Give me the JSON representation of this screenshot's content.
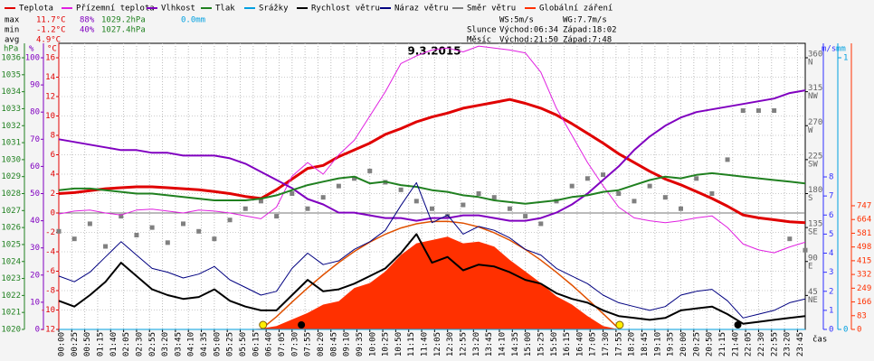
{
  "chart_data": {
    "type": "line",
    "title": "9.3.2015",
    "x_label": "čas",
    "x": [
      0,
      30,
      60,
      90,
      120,
      150,
      180,
      210,
      240,
      270,
      300,
      330,
      360,
      390,
      420,
      450,
      480,
      510,
      540,
      570,
      600,
      630,
      660,
      690,
      720,
      750,
      780,
      810,
      840,
      870,
      900,
      930,
      960,
      990,
      1020,
      1050,
      1080,
      1110,
      1140,
      1170,
      1200,
      1230,
      1260,
      1290,
      1320,
      1350,
      1380,
      1410,
      1440
    ],
    "xlim": [
      0,
      1440
    ],
    "xticks": [
      {
        "value": 0,
        "label": "00:00"
      },
      {
        "value": 25,
        "label": "00:25"
      },
      {
        "value": 50,
        "label": "00:50"
      },
      {
        "value": 75,
        "label": "01:15"
      },
      {
        "value": 100,
        "label": "01:40"
      },
      {
        "value": 125,
        "label": "02:05"
      },
      {
        "value": 150,
        "label": "02:30"
      },
      {
        "value": 175,
        "label": "02:55"
      },
      {
        "value": 200,
        "label": "03:20"
      },
      {
        "value": 225,
        "label": "03:45"
      },
      {
        "value": 250,
        "label": "04:10"
      },
      {
        "value": 275,
        "label": "04:35"
      },
      {
        "value": 300,
        "label": "05:00"
      },
      {
        "value": 325,
        "label": "05:25"
      },
      {
        "value": 350,
        "label": "05:50"
      },
      {
        "value": 375,
        "label": "06:15"
      },
      {
        "value": 400,
        "label": "06:40"
      },
      {
        "value": 425,
        "label": "07:05"
      },
      {
        "value": 450,
        "label": "07:30"
      },
      {
        "value": 475,
        "label": "07:55"
      },
      {
        "value": 500,
        "label": "08:20"
      },
      {
        "value": 525,
        "label": "08:45"
      },
      {
        "value": 550,
        "label": "09:10"
      },
      {
        "value": 575,
        "label": "09:35"
      },
      {
        "value": 600,
        "label": "10:00"
      },
      {
        "value": 625,
        "label": "10:25"
      },
      {
        "value": 650,
        "label": "10:50"
      },
      {
        "value": 675,
        "label": "11:15"
      },
      {
        "value": 700,
        "label": "11:40"
      },
      {
        "value": 725,
        "label": "12:05"
      },
      {
        "value": 750,
        "label": "12:30"
      },
      {
        "value": 775,
        "label": "12:55"
      },
      {
        "value": 800,
        "label": "13:20"
      },
      {
        "value": 825,
        "label": "13:45"
      },
      {
        "value": 850,
        "label": "14:10"
      },
      {
        "value": 875,
        "label": "14:35"
      },
      {
        "value": 900,
        "label": "15:00"
      },
      {
        "value": 925,
        "label": "15:25"
      },
      {
        "value": 950,
        "label": "15:50"
      },
      {
        "value": 975,
        "label": "16:15"
      },
      {
        "value": 1000,
        "label": "16:40"
      },
      {
        "value": 1025,
        "label": "17:05"
      },
      {
        "value": 1050,
        "label": "17:30"
      },
      {
        "value": 1075,
        "label": "17:55"
      },
      {
        "value": 1100,
        "label": "18:20"
      },
      {
        "value": 1125,
        "label": "18:45"
      },
      {
        "value": 1150,
        "label": "19:10"
      },
      {
        "value": 1175,
        "label": "19:35"
      },
      {
        "value": 1200,
        "label": "20:00"
      },
      {
        "value": 1225,
        "label": "20:25"
      },
      {
        "value": 1250,
        "label": "20:50"
      },
      {
        "value": 1275,
        "label": "21:15"
      },
      {
        "value": 1300,
        "label": "21:40"
      },
      {
        "value": 1325,
        "label": "22:05"
      },
      {
        "value": 1350,
        "label": "22:30"
      },
      {
        "value": 1375,
        "label": "22:55"
      },
      {
        "value": 1400,
        "label": "23:20"
      },
      {
        "value": 1425,
        "label": "23:45"
      }
    ],
    "grid": true,
    "axes": {
      "pressure": {
        "label": "hPa",
        "color": "#208020",
        "lim": [
          1020,
          1036
        ],
        "ticks": [
          1020,
          1021,
          1022,
          1023,
          1024,
          1025,
          1026,
          1027,
          1028,
          1029,
          1030,
          1031,
          1032,
          1033,
          1034,
          1035,
          1036
        ]
      },
      "humidity": {
        "label": "%",
        "color": "#8000c0",
        "lim": [
          0,
          100
        ],
        "ticks": [
          0,
          10,
          20,
          30,
          40,
          50,
          60,
          70,
          80,
          90,
          100
        ]
      },
      "temperature": {
        "label": "°C",
        "color": "#e00000",
        "lim": [
          -12,
          16
        ],
        "ticks": [
          -12,
          -10,
          -8,
          -6,
          -4,
          -2,
          0,
          2,
          4,
          6,
          8,
          10,
          12,
          14,
          16
        ]
      },
      "direction": {
        "color": "#606060",
        "lim": [
          0,
          360
        ],
        "ticks": [
          45,
          90,
          135,
          180,
          225,
          270,
          315,
          360
        ],
        "names": [
          "NE",
          "E",
          "SE",
          "S",
          "SW",
          "W",
          "NW",
          "N"
        ]
      },
      "wind": {
        "label": "m/s",
        "color": "#3030ff",
        "lim": [
          0,
          14.25
        ],
        "ticks": [
          0,
          1,
          2,
          3,
          4,
          5,
          6,
          7,
          8
        ]
      },
      "rain": {
        "label": "mm",
        "color": "#00a0e0",
        "lim": [
          0,
          1
        ],
        "ticks": [
          0,
          1
        ]
      },
      "radiation": {
        "color": "#ff3000",
        "lim": [
          0,
          1641
        ],
        "ticks": [
          0,
          83,
          166,
          249,
          332,
          415,
          498,
          581,
          664,
          747
        ]
      }
    },
    "series": [
      {
        "name": "Teplota",
        "color": "#e00000",
        "axis": "temperature",
        "kind": "line",
        "width": 3,
        "values": [
          2.0,
          2.1,
          2.3,
          2.5,
          2.6,
          2.7,
          2.7,
          2.6,
          2.5,
          2.4,
          2.2,
          2.0,
          1.7,
          1.5,
          2.4,
          3.5,
          4.6,
          4.9,
          5.8,
          6.5,
          7.2,
          8.1,
          8.7,
          9.4,
          9.9,
          10.3,
          10.8,
          11.1,
          11.4,
          11.7,
          11.3,
          10.8,
          10.1,
          9.2,
          8.2,
          7.2,
          6.1,
          5.2,
          4.3,
          3.5,
          2.9,
          2.2,
          1.5,
          0.7,
          -0.2,
          -0.5,
          -0.7,
          -0.9,
          -1.0
        ]
      },
      {
        "name": "Přízemní teplota",
        "color": "#e020e0",
        "axis": "temperature",
        "kind": "line",
        "width": 1,
        "values": [
          -0.1,
          0.2,
          0.3,
          0.0,
          -0.2,
          0.3,
          0.4,
          0.2,
          0.0,
          0.3,
          0.2,
          0.0,
          -0.3,
          -0.6,
          0.6,
          3.8,
          5.2,
          4.0,
          6.0,
          7.5,
          10.0,
          12.5,
          15.4,
          16.2,
          16.8,
          17.0,
          16.6,
          17.2,
          17.0,
          16.8,
          16.5,
          14.5,
          10.8,
          8.0,
          5.2,
          2.8,
          0.6,
          -0.5,
          -0.8,
          -1.0,
          -0.8,
          -0.5,
          -0.3,
          -1.5,
          -3.2,
          -3.8,
          -4.1,
          -3.5,
          -3.0
        ]
      },
      {
        "name": "Vlhkost",
        "color": "#8000c0",
        "axis": "humidity",
        "kind": "line",
        "width": 2,
        "values": [
          70,
          69,
          68,
          67,
          66,
          66,
          65,
          65,
          64,
          64,
          64,
          63,
          61,
          58,
          55,
          52,
          48,
          46,
          43,
          43,
          42,
          41,
          41,
          40,
          41,
          41,
          42,
          42,
          41,
          40,
          40,
          41,
          43,
          46,
          50,
          55,
          60,
          66,
          71,
          75,
          78,
          80,
          81,
          82,
          83,
          84,
          85,
          87,
          88
        ]
      },
      {
        "name": "Tlak",
        "color": "#208020",
        "axis": "pressure",
        "kind": "line",
        "width": 2,
        "values": [
          1028.2,
          1028.3,
          1028.3,
          1028.2,
          1028.1,
          1028.0,
          1028.0,
          1027.9,
          1027.8,
          1027.7,
          1027.6,
          1027.6,
          1027.6,
          1027.7,
          1027.9,
          1028.2,
          1028.5,
          1028.7,
          1028.9,
          1029.0,
          1028.6,
          1028.7,
          1028.5,
          1028.4,
          1028.2,
          1028.1,
          1027.9,
          1027.8,
          1027.6,
          1027.5,
          1027.4,
          1027.5,
          1027.6,
          1027.8,
          1027.9,
          1028.1,
          1028.2,
          1028.5,
          1028.8,
          1029.0,
          1028.9,
          1029.1,
          1029.2,
          1029.1,
          1029.0,
          1028.9,
          1028.8,
          1028.7,
          1028.6
        ]
      },
      {
        "name": "Srážky",
        "color": "#00a0e0",
        "axis": "rain",
        "kind": "line",
        "width": 1,
        "values": [
          0,
          0,
          0,
          0,
          0,
          0,
          0,
          0,
          0,
          0,
          0,
          0,
          0,
          0,
          0,
          0,
          0,
          0,
          0,
          0,
          0,
          0,
          0,
          0,
          0,
          0,
          0,
          0,
          0,
          0,
          0,
          0,
          0,
          0,
          0,
          0,
          0,
          0,
          0,
          0,
          0,
          0,
          0,
          0,
          0,
          0,
          0,
          0,
          0
        ]
      },
      {
        "name": "Rychlost větru",
        "color": "#000000",
        "axis": "wind",
        "kind": "line",
        "width": 2,
        "values": [
          1.5,
          1.2,
          1.8,
          2.5,
          3.5,
          2.8,
          2.1,
          1.8,
          1.6,
          1.7,
          2.1,
          1.5,
          1.2,
          1.0,
          1.0,
          1.8,
          2.6,
          2.0,
          2.1,
          2.4,
          2.8,
          3.2,
          4.0,
          5.0,
          3.5,
          3.8,
          3.1,
          3.4,
          3.3,
          3.0,
          2.6,
          2.4,
          1.9,
          1.6,
          1.4,
          1.0,
          0.7,
          0.6,
          0.5,
          0.6,
          1.0,
          1.1,
          1.2,
          0.8,
          0.3,
          0.4,
          0.5,
          0.6,
          0.7
        ]
      },
      {
        "name": "Náraz větru",
        "color": "#000080",
        "axis": "wind",
        "kind": "line",
        "width": 1,
        "values": [
          2.8,
          2.5,
          3.0,
          3.8,
          4.6,
          3.9,
          3.2,
          3.0,
          2.7,
          2.9,
          3.3,
          2.6,
          2.2,
          1.8,
          2.0,
          3.2,
          4.0,
          3.4,
          3.6,
          4.2,
          4.6,
          5.2,
          6.5,
          7.7,
          5.6,
          6.0,
          5.0,
          5.4,
          5.2,
          4.8,
          4.2,
          3.9,
          3.2,
          2.8,
          2.4,
          1.8,
          1.4,
          1.2,
          1.0,
          1.2,
          1.8,
          2.0,
          2.1,
          1.5,
          0.6,
          0.8,
          1.0,
          1.4,
          1.6
        ]
      },
      {
        "name": "Směr větru",
        "color": "#808080",
        "axis": "direction",
        "kind": "points",
        "width": 1,
        "values": [
          130,
          120,
          140,
          110,
          150,
          125,
          135,
          115,
          140,
          130,
          120,
          145,
          160,
          170,
          150,
          180,
          160,
          175,
          190,
          200,
          210,
          195,
          185,
          170,
          160,
          150,
          165,
          180,
          175,
          160,
          150,
          140,
          170,
          190,
          200,
          205,
          180,
          170,
          190,
          175,
          160,
          200,
          180,
          225,
          290,
          290,
          290,
          120,
          105
        ]
      },
      {
        "name": "Globální záření",
        "color": "#ff3000",
        "axis": "radiation",
        "kind": "area",
        "width": 1,
        "values": [
          0,
          0,
          0,
          0,
          0,
          0,
          0,
          0,
          0,
          0,
          0,
          0,
          0,
          5,
          20,
          60,
          100,
          150,
          170,
          250,
          280,
          350,
          450,
          520,
          540,
          560,
          520,
          530,
          500,
          420,
          350,
          280,
          200,
          150,
          80,
          20,
          0,
          0,
          0,
          0,
          0,
          0,
          0,
          0,
          0,
          0,
          0,
          0,
          0
        ]
      }
    ],
    "clear_sky": {
      "color": "#e05000",
      "axis": "radiation",
      "values": [
        null,
        null,
        null,
        null,
        null,
        null,
        null,
        null,
        null,
        null,
        null,
        null,
        null,
        0,
        77,
        165,
        250,
        330,
        404,
        471,
        528,
        575,
        613,
        638,
        652,
        653,
        642,
        619,
        584,
        539,
        483,
        418,
        345,
        267,
        182,
        95,
        5,
        null,
        null,
        null,
        null,
        null,
        null,
        null,
        null,
        null,
        null,
        null,
        null
      ]
    },
    "events": {
      "sun": [
        394,
        1082
      ],
      "moon": [
        468,
        1310
      ]
    },
    "stats": {
      "max": {
        "label": "max",
        "temperature": "11.7°C",
        "humidity": "88%",
        "pressure": "1029.2hPa",
        "rain": "0.0mm"
      },
      "min": {
        "label": "min",
        "temperature": "-1.2°C",
        "humidity": "40%",
        "pressure": "1027.4hPa"
      },
      "avg": {
        "label": "avg",
        "temperature": "4.9°C"
      }
    },
    "info": {
      "ws": "WS:5m/s",
      "wg": "WG:7.7m/s",
      "sun": {
        "label": "Slunce",
        "rise": "Východ:06:34",
        "set": "Západ:18:02"
      },
      "moon": {
        "label": "Měsíc",
        "rise": "Východ:21:50",
        "set": "Západ:7:48"
      }
    }
  }
}
